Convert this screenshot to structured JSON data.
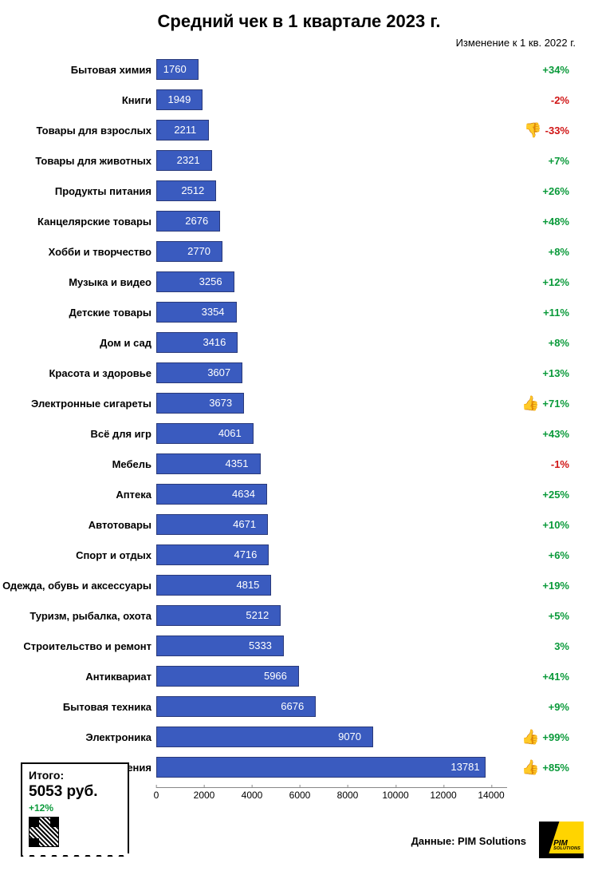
{
  "title": "Средний чек в 1 квартале 2023 г.",
  "subtitle": "Изменение к 1 кв. 2022 г.",
  "chart": {
    "type": "bar-horizontal",
    "x_max": 14000,
    "x_tick_step": 2000,
    "bar_color": "#3a5bbf",
    "bar_border": "#2a3a7a",
    "value_text_color": "#ffffff",
    "positive_color": "#0a9a3a",
    "negative_color": "#d01515",
    "label_fontsize": 13,
    "value_fontsize": 13,
    "change_fontsize": 13,
    "rows": [
      {
        "label": "Бытовая химия",
        "value": 1760,
        "change": "+34%",
        "dir": "up",
        "icon": ""
      },
      {
        "label": "Книги",
        "value": 1949,
        "change": "-2%",
        "dir": "down",
        "icon": ""
      },
      {
        "label": "Товары для взрослых",
        "value": 2211,
        "change": "-33%",
        "dir": "down",
        "icon": "👎"
      },
      {
        "label": "Товары для животных",
        "value": 2321,
        "change": "+7%",
        "dir": "up",
        "icon": ""
      },
      {
        "label": "Продукты питания",
        "value": 2512,
        "change": "+26%",
        "dir": "up",
        "icon": ""
      },
      {
        "label": "Канцелярские товары",
        "value": 2676,
        "change": "+48%",
        "dir": "up",
        "icon": ""
      },
      {
        "label": "Хобби и творчество",
        "value": 2770,
        "change": "+8%",
        "dir": "up",
        "icon": ""
      },
      {
        "label": "Музыка и видео",
        "value": 3256,
        "change": "+12%",
        "dir": "up",
        "icon": ""
      },
      {
        "label": "Детские товары",
        "value": 3354,
        "change": "+11%",
        "dir": "up",
        "icon": ""
      },
      {
        "label": "Дом и сад",
        "value": 3416,
        "change": "+8%",
        "dir": "up",
        "icon": ""
      },
      {
        "label": "Красота и здоровье",
        "value": 3607,
        "change": "+13%",
        "dir": "up",
        "icon": ""
      },
      {
        "label": "Электронные сигареты",
        "value": 3673,
        "change": "+71%",
        "dir": "up",
        "icon": "👍"
      },
      {
        "label": "Всё для игр",
        "value": 4061,
        "change": "+43%",
        "dir": "up",
        "icon": ""
      },
      {
        "label": "Мебель",
        "value": 4351,
        "change": "-1%",
        "dir": "down",
        "icon": ""
      },
      {
        "label": "Аптека",
        "value": 4634,
        "change": "+25%",
        "dir": "up",
        "icon": ""
      },
      {
        "label": "Автотовары",
        "value": 4671,
        "change": "+10%",
        "dir": "up",
        "icon": ""
      },
      {
        "label": "Спорт и отдых",
        "value": 4716,
        "change": "+6%",
        "dir": "up",
        "icon": ""
      },
      {
        "label": "Одежда, обувь и аксессуары",
        "value": 4815,
        "change": "+19%",
        "dir": "up",
        "icon": ""
      },
      {
        "label": "Туризм, рыбалка, охота",
        "value": 5212,
        "change": "+5%",
        "dir": "up",
        "icon": ""
      },
      {
        "label": "Строительство и ремонт",
        "value": 5333,
        "change": "3%",
        "dir": "up",
        "icon": ""
      },
      {
        "label": "Антиквариат",
        "value": 5966,
        "change": "+41%",
        "dir": "up",
        "icon": ""
      },
      {
        "label": "Бытовая техника",
        "value": 6676,
        "change": "+9%",
        "dir": "up",
        "icon": ""
      },
      {
        "label": "Электроника",
        "value": 9070,
        "change": "+99%",
        "dir": "up",
        "icon": "👍"
      },
      {
        "label": "Ювелирные украшения",
        "value": 13781,
        "change": "+85%",
        "dir": "up",
        "icon": "👍"
      }
    ]
  },
  "summary": {
    "title": "Итого:",
    "value": "5053 руб.",
    "change": "+12%"
  },
  "source": "Данные: PIM Solutions",
  "logo": {
    "line1": "PIM",
    "line2": "SOLUTIONS"
  }
}
